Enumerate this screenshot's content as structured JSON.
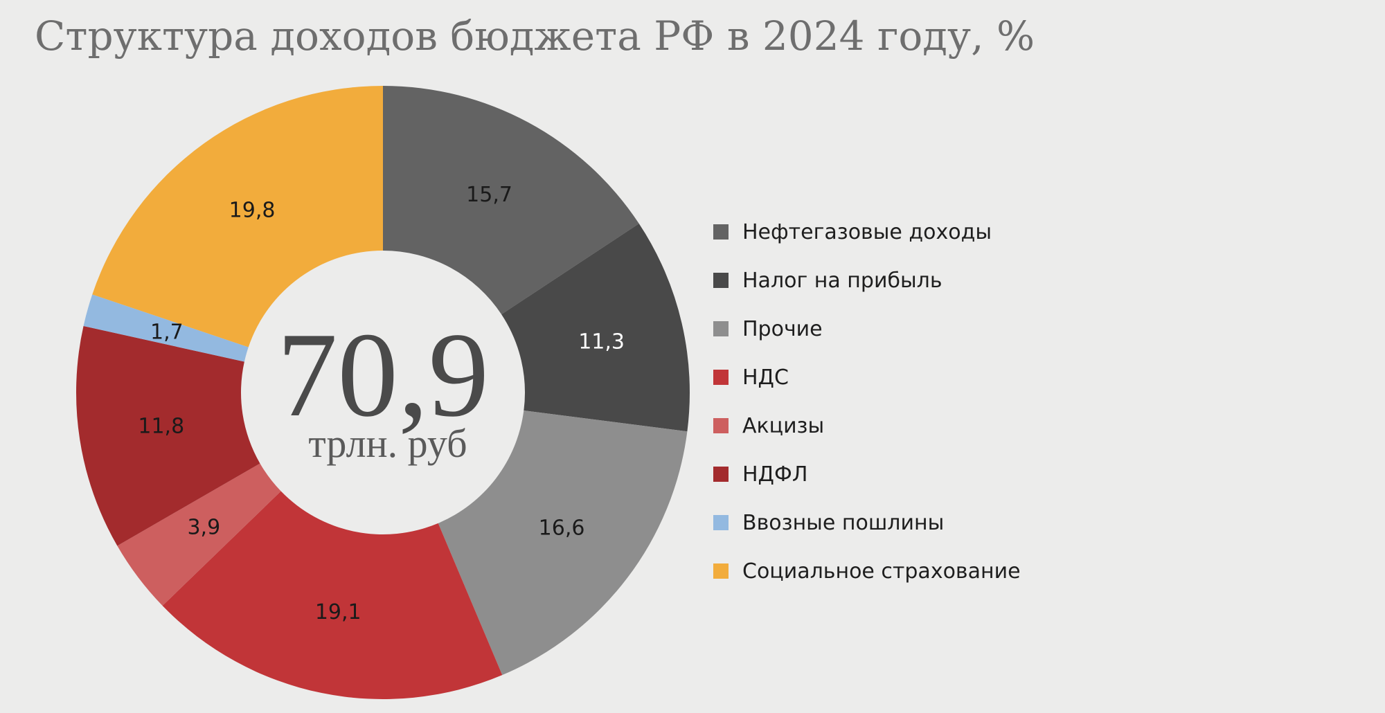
{
  "chart_data": {
    "type": "pie",
    "title": "Структура доходов бюджета РФ в 2024 году, %",
    "center_value": "70,9",
    "center_unit": "трлн. руб",
    "slices": [
      {
        "name": "Нефтегазовые доходы",
        "value": 15.7,
        "label": "15,7",
        "color": "#636363",
        "label_color": "#1a1a1a"
      },
      {
        "name": "Налог на прибыль",
        "value": 11.3,
        "label": "11,3",
        "color": "#494949",
        "label_color": "#ffffff"
      },
      {
        "name": "Прочие",
        "value": 16.6,
        "label": "16,6",
        "color": "#8e8e8e",
        "label_color": "#1a1a1a"
      },
      {
        "name": "НДС",
        "value": 19.1,
        "label": "19,1",
        "color": "#c13538",
        "label_color": "#1a1a1a"
      },
      {
        "name": "Акцизы",
        "value": 3.9,
        "label": "3,9",
        "color": "#cd5f5f",
        "label_color": "#1a1a1a"
      },
      {
        "name": "НДФЛ",
        "value": 11.8,
        "label": "11,8",
        "color": "#a32b2d",
        "label_color": "#1a1a1a"
      },
      {
        "name": "Ввозные пошлины",
        "value": 1.7,
        "label": "1,7",
        "color": "#93b9e0",
        "label_color": "#1a1a1a"
      },
      {
        "name": "Социальное страхование",
        "value": 19.8,
        "label": "19,8",
        "color": "#f2ac3c",
        "label_color": "#1a1a1a"
      }
    ],
    "legend_position": "right"
  }
}
